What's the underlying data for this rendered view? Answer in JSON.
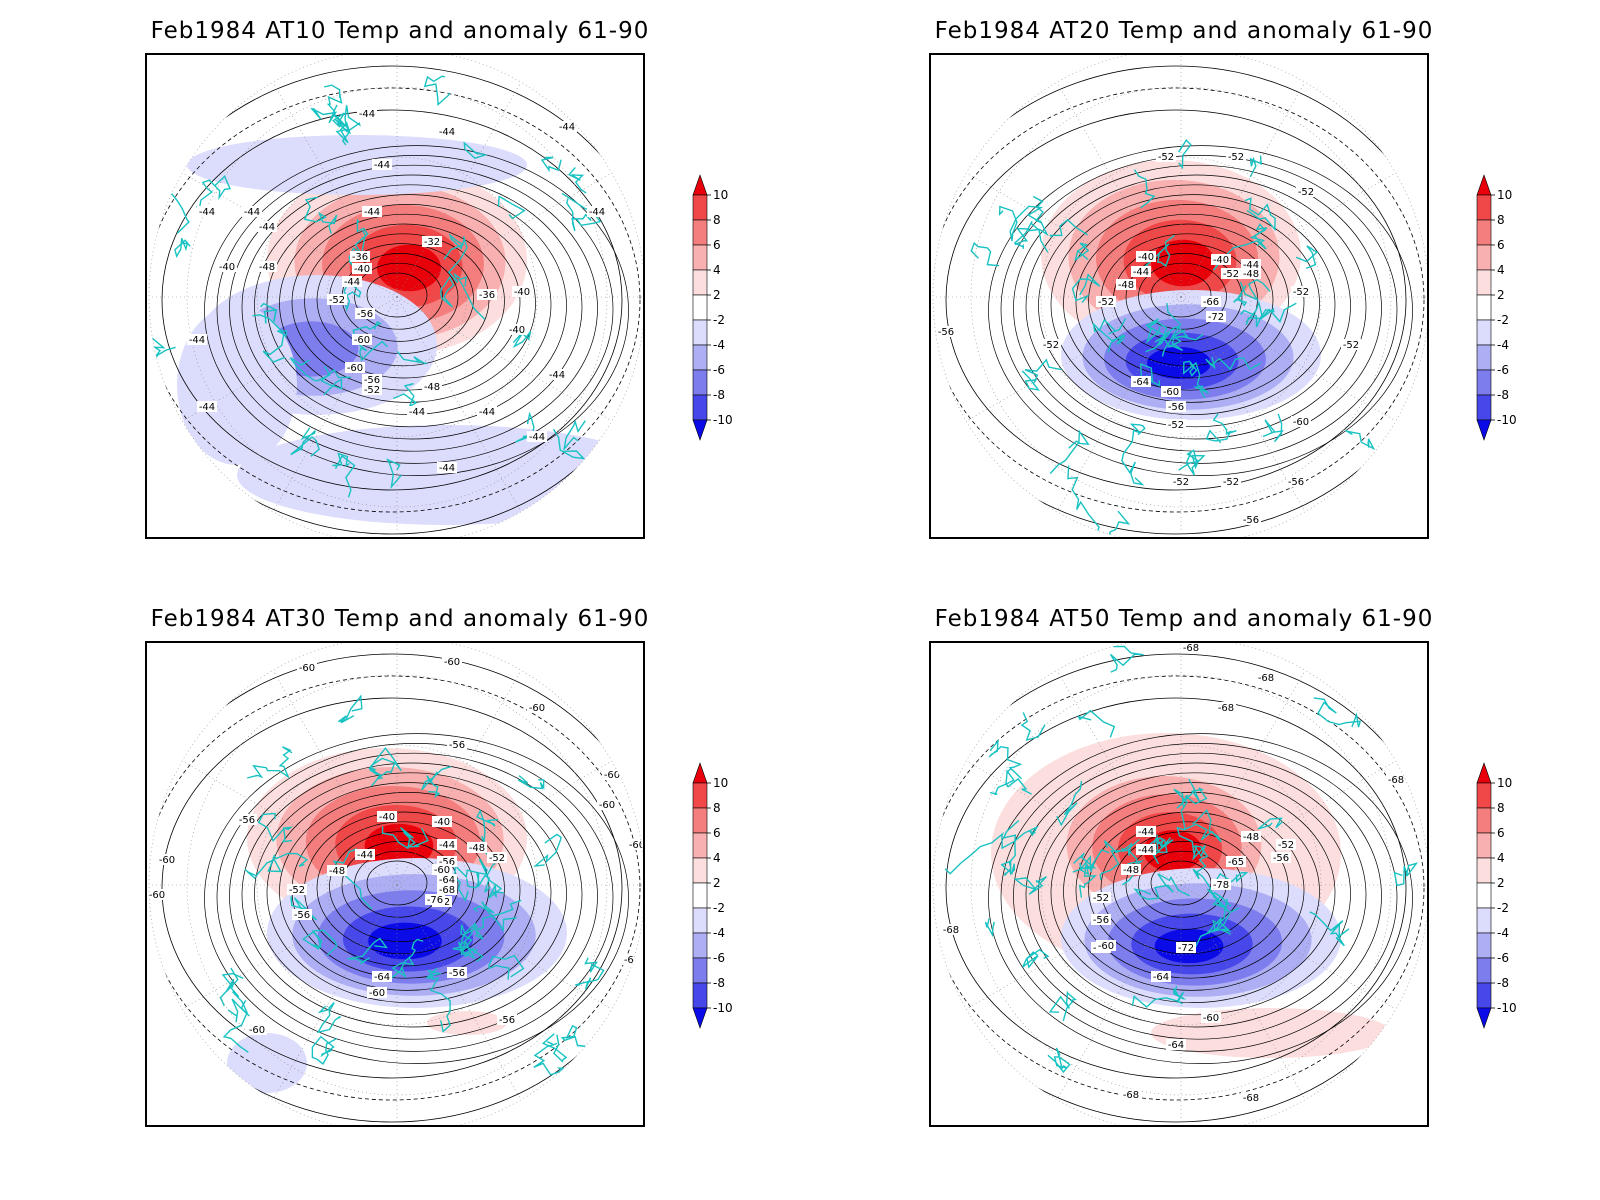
{
  "figure": {
    "panels": [
      {
        "title": "Feb1984 AT10 Temp and anomaly 61-90",
        "contour_labels": [
          "-44",
          "-44",
          "-44",
          "-44",
          "-44",
          "-44",
          "-44",
          "-44",
          "-40",
          "-48",
          "-36",
          "-40",
          "-44",
          "-52",
          "-56",
          "-60",
          "-60",
          "-56",
          "-52",
          "-48",
          "-44",
          "-44",
          "-44",
          "-44",
          "-40",
          "-40",
          "-36",
          "-32",
          "-44",
          "-44",
          "-44",
          "-44"
        ]
      },
      {
        "title": "Feb1984 AT20 Temp and anomaly 61-90",
        "contour_labels": [
          "-52",
          "-52",
          "-52",
          "-40",
          "-44",
          "-48",
          "-52",
          "-40",
          "-44",
          "-52",
          "-48",
          "-66",
          "-72",
          "-64",
          "-60",
          "-56",
          "-52",
          "-52",
          "-52",
          "-56",
          "-52",
          "-56",
          "-52",
          "-56",
          "-60",
          "-52"
        ]
      },
      {
        "title": "Feb1984 AT30 Temp and anomaly 61-90",
        "contour_labels": [
          "-60",
          "-60",
          "-60",
          "-56",
          "-56",
          "-40",
          "-40",
          "-44",
          "-48",
          "-52",
          "-56",
          "-44",
          "-48",
          "-52",
          "-56",
          "-60",
          "-64",
          "-68",
          "-72",
          "-76",
          "-64",
          "-60",
          "-56",
          "-56",
          "-60",
          "-60",
          "-60",
          "-60",
          "-60",
          "-60",
          "-60"
        ]
      },
      {
        "title": "Feb1984 AT50 Temp and anomaly 61-90",
        "contour_labels": [
          "-68",
          "-68",
          "-68",
          "-68",
          "-44",
          "-48",
          "-44",
          "-48",
          "-52",
          "-56",
          "-60",
          "-65",
          "-56",
          "-52",
          "-78",
          "-72",
          "-64",
          "-60",
          "-60",
          "-64",
          "-68",
          "-68",
          "-68"
        ]
      }
    ],
    "colorbar": {
      "tick_labels": [
        "10",
        "8",
        "6",
        "4",
        "2",
        "-2",
        "-4",
        "-6",
        "-8",
        "-10"
      ],
      "colors": [
        "#e8000b",
        "#f04848",
        "#f47d7d",
        "#f8b0b0",
        "#fcdede",
        "#ffffff",
        "#dcdcfc",
        "#aeaef4",
        "#7d7dee",
        "#4848ea",
        "#0b0be8"
      ]
    }
  },
  "chart_data": [
    {
      "type": "heatmap",
      "title": "Feb1984 AT10 Temp and anomaly 61-90",
      "projection": "polar stereographic, Northern Hemisphere",
      "contour_values": [
        -60,
        -56,
        -52,
        -48,
        -44,
        -40,
        -36,
        -32
      ],
      "anomaly_features": [
        {
          "sign": "positive",
          "max": 10,
          "region": "upper-center"
        },
        {
          "sign": "negative",
          "min": -6,
          "region": "left-center"
        },
        {
          "sign": "negative",
          "min": -2,
          "region": "broad bands"
        }
      ],
      "colorbar_range": [
        -10,
        10
      ]
    },
    {
      "type": "heatmap",
      "title": "Feb1984 AT20 Temp and anomaly 61-90",
      "projection": "polar stereographic, Northern Hemisphere",
      "contour_values": [
        -72,
        -66,
        -64,
        -60,
        -56,
        -52,
        -48,
        -44,
        -40
      ],
      "anomaly_features": [
        {
          "sign": "positive",
          "max": 10,
          "region": "upper-center"
        },
        {
          "sign": "negative",
          "min": -10,
          "region": "center-right"
        }
      ],
      "colorbar_range": [
        -10,
        10
      ]
    },
    {
      "type": "heatmap",
      "title": "Feb1984 AT30 Temp and anomaly 61-90",
      "projection": "polar stereographic, Northern Hemisphere",
      "contour_values": [
        -76,
        -72,
        -68,
        -64,
        -60,
        -56,
        -52,
        -48,
        -44,
        -40
      ],
      "anomaly_features": [
        {
          "sign": "positive",
          "max": 10,
          "region": "upper-center"
        },
        {
          "sign": "negative",
          "min": -10,
          "region": "center-right"
        }
      ],
      "colorbar_range": [
        -10,
        10
      ]
    },
    {
      "type": "heatmap",
      "title": "Feb1984 AT50 Temp and anomaly 61-90",
      "projection": "polar stereographic, Northern Hemisphere",
      "contour_values": [
        -78,
        -72,
        -68,
        -65,
        -64,
        -60,
        -56,
        -52,
        -48,
        -44
      ],
      "anomaly_features": [
        {
          "sign": "positive",
          "max": 10,
          "region": "upper-center"
        },
        {
          "sign": "negative",
          "min": -10,
          "region": "center-right"
        },
        {
          "sign": "positive",
          "max": 2,
          "region": "outer ring"
        }
      ],
      "colorbar_range": [
        -10,
        10
      ]
    }
  ]
}
